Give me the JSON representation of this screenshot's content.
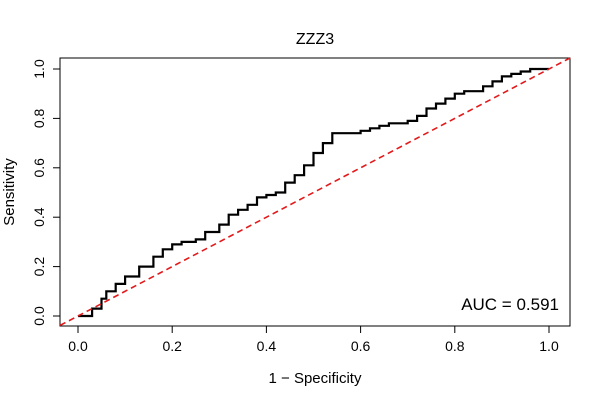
{
  "chart_data": {
    "type": "line",
    "title": "ZZZ3",
    "xlabel": "1 − Specificity",
    "ylabel": "Sensitivity",
    "xlim": [
      0.0,
      1.0
    ],
    "ylim": [
      0.0,
      1.0
    ],
    "xticks": [
      "0.0",
      "0.2",
      "0.4",
      "0.6",
      "0.8",
      "1.0"
    ],
    "yticks": [
      "0.0",
      "0.2",
      "0.4",
      "0.6",
      "0.8",
      "1.0"
    ],
    "grid": false,
    "annotation": "AUC = 0.591",
    "series": [
      {
        "line_style": "solid",
        "color": "#000000",
        "x": [
          0.0,
          0.02,
          0.03,
          0.05,
          0.06,
          0.08,
          0.1,
          0.13,
          0.16,
          0.18,
          0.2,
          0.22,
          0.25,
          0.27,
          0.3,
          0.32,
          0.34,
          0.36,
          0.38,
          0.4,
          0.42,
          0.44,
          0.46,
          0.48,
          0.5,
          0.52,
          0.54,
          0.56,
          0.58,
          0.6,
          0.62,
          0.64,
          0.66,
          0.68,
          0.7,
          0.72,
          0.74,
          0.76,
          0.78,
          0.8,
          0.82,
          0.84,
          0.86,
          0.88,
          0.9,
          0.92,
          0.94,
          0.96,
          0.98,
          1.0
        ],
        "y": [
          0.0,
          0.0,
          0.03,
          0.07,
          0.1,
          0.13,
          0.16,
          0.2,
          0.24,
          0.27,
          0.29,
          0.3,
          0.31,
          0.34,
          0.37,
          0.41,
          0.43,
          0.45,
          0.48,
          0.49,
          0.5,
          0.54,
          0.57,
          0.61,
          0.66,
          0.7,
          0.74,
          0.74,
          0.74,
          0.75,
          0.76,
          0.77,
          0.78,
          0.78,
          0.79,
          0.81,
          0.84,
          0.86,
          0.88,
          0.9,
          0.91,
          0.91,
          0.93,
          0.95,
          0.97,
          0.98,
          0.99,
          1.0,
          1.0,
          1.0
        ]
      },
      {
        "line_style": "dashed",
        "color": "#e31a1c",
        "x": [
          0.0,
          1.0
        ],
        "y": [
          0.0,
          1.0
        ]
      }
    ]
  }
}
